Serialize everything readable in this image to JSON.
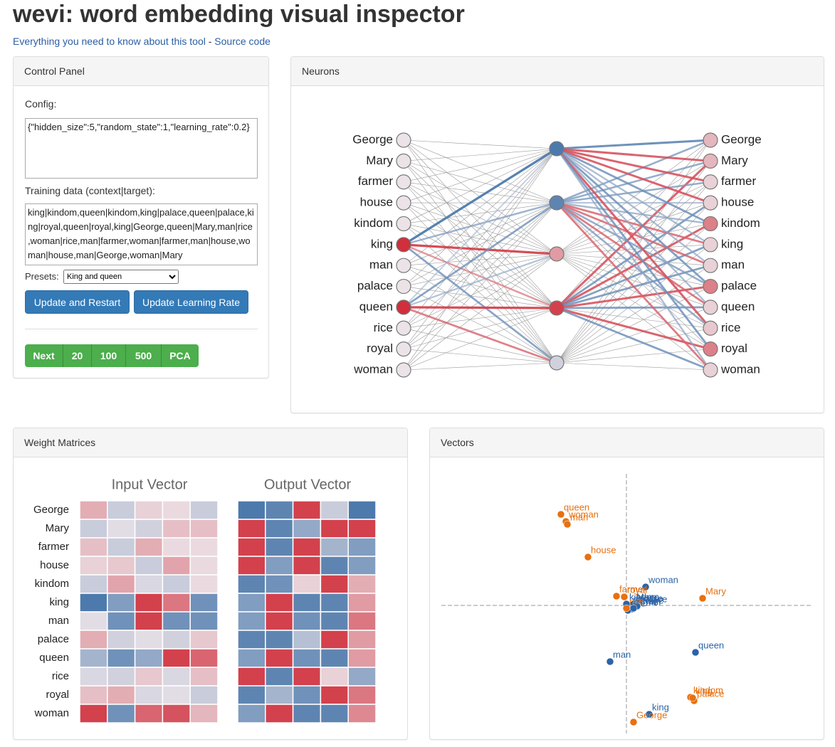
{
  "header": {
    "title": "wevi: word embedding visual inspector",
    "links": [
      "Everything you need to know about this tool",
      "Source code"
    ],
    "separator": "-"
  },
  "control_panel": {
    "title": "Control Panel",
    "config_label": "Config:",
    "config_value": "{\"hidden_size\":5,\"random_state\":1,\"learning_rate\":0.2}",
    "training_label": "Training data (context|target):",
    "training_value": "king|kindom,queen|kindom,king|palace,queen|palace,king|royal,queen|royal,king|George,queen|Mary,man|rice,woman|rice,man|farmer,woman|farmer,man|house,woman|house,man|George,woman|Mary",
    "presets_label": "Presets:",
    "preset_selected": "King and queen",
    "buttons": [
      "Update and Restart",
      "Update Learning Rate"
    ],
    "step_buttons": [
      "Next",
      "20",
      "100",
      "500",
      "PCA"
    ]
  },
  "neurons": {
    "title": "Neurons",
    "words": [
      "George",
      "Mary",
      "farmer",
      "house",
      "kindom",
      "king",
      "man",
      "palace",
      "queen",
      "rice",
      "royal",
      "woman"
    ],
    "input_activations": [
      0,
      0,
      0,
      0,
      0,
      1,
      0,
      0,
      1,
      0,
      0,
      0
    ],
    "hidden_activations": [
      -0.9,
      -0.8,
      0.4,
      0.9,
      -0.15
    ],
    "output_activations": [
      0.25,
      0.25,
      0.1,
      0.1,
      0.55,
      0.1,
      0.1,
      0.55,
      0.1,
      0.15,
      0.55,
      0.1
    ]
  },
  "weight_matrices": {
    "title": "Weight Matrices",
    "input_title": "Input Vector",
    "output_title": "Output Vector",
    "input": [
      [
        0.3,
        -0.2,
        0.1,
        0.05,
        -0.2
      ],
      [
        -0.2,
        -0.05,
        -0.15,
        0.2,
        0.2
      ],
      [
        0.2,
        -0.2,
        0.3,
        0.05,
        0.05
      ],
      [
        0.1,
        0.15,
        -0.2,
        0.35,
        0.05
      ],
      [
        -0.2,
        0.35,
        -0.1,
        -0.2,
        0.05
      ],
      [
        -0.9,
        -0.6,
        0.9,
        0.6,
        -0.7
      ],
      [
        -0.05,
        -0.7,
        0.9,
        -0.7,
        -0.7
      ],
      [
        0.3,
        -0.15,
        -0.05,
        -0.15,
        0.15
      ],
      [
        -0.4,
        -0.7,
        -0.5,
        0.9,
        0.7
      ],
      [
        -0.1,
        -0.15,
        0.15,
        -0.1,
        0.2
      ],
      [
        0.2,
        0.3,
        -0.1,
        -0.05,
        -0.2
      ],
      [
        0.9,
        -0.7,
        0.7,
        0.8,
        0.25
      ]
    ],
    "output": [
      [
        -0.9,
        -0.8,
        0.9,
        -0.2,
        -0.9
      ],
      [
        0.9,
        -0.8,
        -0.5,
        0.9,
        0.9
      ],
      [
        0.9,
        -0.8,
        0.9,
        -0.4,
        -0.6
      ],
      [
        0.9,
        -0.6,
        0.9,
        -0.8,
        -0.6
      ],
      [
        -0.8,
        -0.7,
        0.1,
        0.9,
        0.3
      ],
      [
        -0.6,
        0.9,
        -0.8,
        -0.8,
        0.4
      ],
      [
        -0.6,
        0.9,
        -0.7,
        -0.8,
        0.6
      ],
      [
        -0.8,
        -0.8,
        -0.3,
        0.9,
        0.4
      ],
      [
        -0.6,
        0.9,
        -0.7,
        -0.8,
        0.4
      ],
      [
        0.9,
        -0.8,
        0.9,
        0.1,
        -0.5
      ],
      [
        -0.8,
        -0.4,
        -0.7,
        0.9,
        0.6
      ],
      [
        -0.6,
        0.9,
        -0.8,
        -0.8,
        0.5
      ]
    ]
  },
  "vectors": {
    "title": "Vectors",
    "xlim": [
      -2.6,
      2.6
    ],
    "ylim": [
      -1.8,
      1.85
    ],
    "series": [
      {
        "color": "#2c63a6",
        "points": [
          {
            "label": "George",
            "x": 0.05,
            "y": -0.03
          },
          {
            "label": "Mary",
            "x": 0.1,
            "y": 0.02
          },
          {
            "label": "farmer",
            "x": 0.08,
            "y": -0.05
          },
          {
            "label": "house",
            "x": 0.12,
            "y": 0.0
          },
          {
            "label": "kindom",
            "x": 0.0,
            "y": 0.02
          },
          {
            "label": "palace",
            "x": 0.15,
            "y": -0.01
          },
          {
            "label": "rice",
            "x": 0.02,
            "y": -0.07
          },
          {
            "label": "royal",
            "x": 0.1,
            "y": -0.04
          },
          {
            "label": "woman",
            "x": 0.27,
            "y": 0.26
          },
          {
            "label": "man",
            "x": -0.23,
            "y": -0.79
          },
          {
            "label": "queen",
            "x": 0.97,
            "y": -0.66
          },
          {
            "label": "king",
            "x": 0.32,
            "y": -1.53
          }
        ]
      },
      {
        "color": "#e8700e",
        "points": [
          {
            "label": "queen",
            "x": -0.92,
            "y": 1.28
          },
          {
            "label": "woman",
            "x": -0.85,
            "y": 1.18
          },
          {
            "label": "man",
            "x": -0.83,
            "y": 1.14
          },
          {
            "label": "house",
            "x": -0.54,
            "y": 0.68
          },
          {
            "label": "farmer",
            "x": -0.14,
            "y": 0.13
          },
          {
            "label": "royal",
            "x": -0.03,
            "y": 0.12
          },
          {
            "label": "rice",
            "x": 0.0,
            "y": -0.04
          },
          {
            "label": "Mary",
            "x": 1.07,
            "y": 0.1
          },
          {
            "label": "kindom",
            "x": 0.9,
            "y": -1.29
          },
          {
            "label": "palace",
            "x": 0.95,
            "y": -1.34
          },
          {
            "label": "king",
            "x": 0.93,
            "y": -1.3
          },
          {
            "label": "George",
            "x": 0.1,
            "y": -1.64
          }
        ]
      }
    ]
  },
  "color_scale": {
    "domain": [
      -1,
      0,
      1
    ],
    "colors": [
      "#3b6ea5",
      "#ebe3e8",
      "#d02f3c"
    ]
  }
}
